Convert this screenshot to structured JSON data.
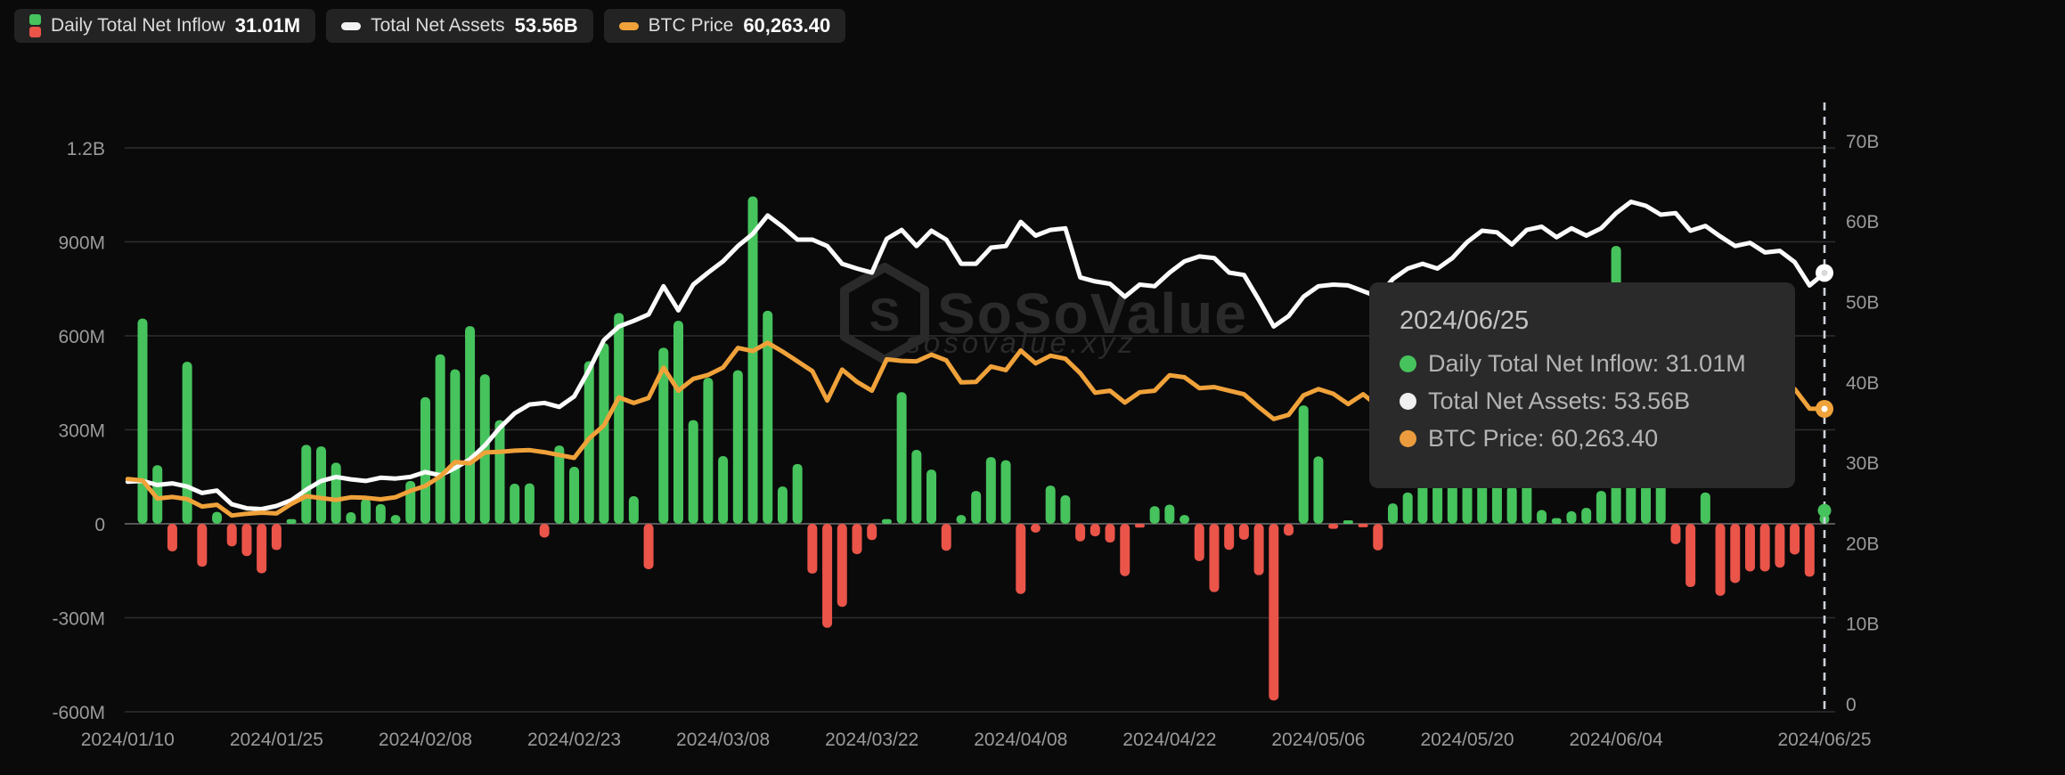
{
  "legend": [
    {
      "label": "Daily Total Net Inflow",
      "value": "31.01M",
      "icon": "green-red-bars-icon"
    },
    {
      "label": "Total Net Assets",
      "value": "53.56B",
      "icon": "white-dash-icon"
    },
    {
      "label": "BTC Price",
      "value": "60,263.40",
      "icon": "orange-dash-icon"
    }
  ],
  "tooltip": {
    "date": "2024/06/25",
    "rows": [
      {
        "label": "Daily Total Net Inflow:",
        "value": "31.01M",
        "color": "#46c35c"
      },
      {
        "label": "Total Net Assets:",
        "value": "53.56B",
        "color": "#f0f0f0"
      },
      {
        "label": "BTC Price:",
        "value": "60,263.40",
        "color": "#ec9c3e"
      }
    ]
  },
  "watermark": {
    "title": "SoSoValue",
    "subtitle": "sosovalue.xyz"
  },
  "colors": {
    "green": "#46c35c",
    "red": "#ea5449",
    "orange": "#f0a23a",
    "white_line": "#fbfbfb",
    "grid": "#2e2e2e",
    "zero_line": "#565656",
    "axis_text": "#9a9a9a",
    "bg": "#0a0a0b",
    "tooltip_bg": "#2a2a2b",
    "legend_bg": "#232323",
    "watermark": "#2a2a2a",
    "cursor": "#ccd1d9"
  },
  "chart_data": {
    "type": "bar+line",
    "title": "",
    "legend_position": "top-left",
    "grid": true,
    "dates": [
      "2024/01/11",
      "2024/01/12",
      "2024/01/16",
      "2024/01/17",
      "2024/01/18",
      "2024/01/19",
      "2024/01/22",
      "2024/01/23",
      "2024/01/24",
      "2024/01/25",
      "2024/01/26",
      "2024/01/29",
      "2024/01/30",
      "2024/01/31",
      "2024/02/01",
      "2024/02/02",
      "2024/02/05",
      "2024/02/06",
      "2024/02/07",
      "2024/02/08",
      "2024/02/09",
      "2024/02/12",
      "2024/02/13",
      "2024/02/14",
      "2024/02/15",
      "2024/02/16",
      "2024/02/20",
      "2024/02/21",
      "2024/02/22",
      "2024/02/23",
      "2024/02/26",
      "2024/02/27",
      "2024/02/28",
      "2024/02/29",
      "2024/03/01",
      "2024/03/04",
      "2024/03/05",
      "2024/03/06",
      "2024/03/07",
      "2024/03/08",
      "2024/03/11",
      "2024/03/12",
      "2024/03/13",
      "2024/03/14",
      "2024/03/15",
      "2024/03/18",
      "2024/03/19",
      "2024/03/20",
      "2024/03/21",
      "2024/03/22",
      "2024/03/25",
      "2024/03/26",
      "2024/03/27",
      "2024/03/28",
      "2024/04/01",
      "2024/04/02",
      "2024/04/03",
      "2024/04/04",
      "2024/04/05",
      "2024/04/08",
      "2024/04/09",
      "2024/04/10",
      "2024/04/11",
      "2024/04/12",
      "2024/04/15",
      "2024/04/16",
      "2024/04/17",
      "2024/04/18",
      "2024/04/19",
      "2024/04/22",
      "2024/04/23",
      "2024/04/24",
      "2024/04/25",
      "2024/04/26",
      "2024/04/29",
      "2024/04/30",
      "2024/05/01",
      "2024/05/02",
      "2024/05/03",
      "2024/05/06",
      "2024/05/07",
      "2024/05/08",
      "2024/05/09",
      "2024/05/10",
      "2024/05/13",
      "2024/05/14",
      "2024/05/15",
      "2024/05/16",
      "2024/05/17",
      "2024/05/20",
      "2024/05/21",
      "2024/05/22",
      "2024/05/23",
      "2024/05/24",
      "2024/05/28",
      "2024/05/29",
      "2024/05/30",
      "2024/05/31",
      "2024/06/03",
      "2024/06/04",
      "2024/06/05",
      "2024/06/06",
      "2024/06/07",
      "2024/06/10",
      "2024/06/11",
      "2024/06/12",
      "2024/06/13",
      "2024/06/14",
      "2024/06/17",
      "2024/06/18",
      "2024/06/20",
      "2024/06/21",
      "2024/06/24",
      "2024/06/25"
    ],
    "series": [
      {
        "name": "Daily Total Net Inflow",
        "type": "bar",
        "axis": "left",
        "unit": "M USD",
        "values": [
          655,
          187,
          -88,
          517,
          -137,
          38,
          -72,
          -103,
          -158,
          -84,
          15,
          252,
          247,
          195,
          37,
          80,
          63,
          28,
          137,
          404,
          541,
          493,
          631,
          477,
          331,
          128,
          129,
          -44,
          250,
          182,
          519,
          577,
          673,
          88,
          -145,
          562,
          648,
          331,
          466,
          216,
          490,
          1045,
          680,
          119,
          191,
          -159,
          -332,
          -265,
          -97,
          -52,
          15,
          420,
          236,
          173,
          -86,
          28,
          105,
          213,
          203,
          -224,
          -28,
          122,
          91,
          -56,
          -40,
          -60,
          -167,
          -12,
          56,
          61,
          28,
          -119,
          -218,
          -83,
          -51,
          -164,
          -564,
          -38,
          378,
          215,
          -16,
          11,
          -11,
          -85,
          65,
          100,
          304,
          257,
          235,
          238,
          306,
          154,
          120,
          252,
          44,
          18,
          40,
          51,
          105,
          887,
          488,
          218,
          132,
          -65,
          -202,
          100,
          -230,
          -189,
          -152,
          -152,
          -140,
          -98,
          -169,
          31.01
        ]
      },
      {
        "name": "Total Net Assets",
        "type": "line",
        "axis": "right",
        "unit": "B USD",
        "lead_point": {
          "date": "2024/01/10",
          "value": 27.6
        },
        "values": [
          27.7,
          27.2,
          27.4,
          27.0,
          26.2,
          26.5,
          24.8,
          24.3,
          24.2,
          24.6,
          25.3,
          26.6,
          27.7,
          28.2,
          27.9,
          27.7,
          28.1,
          28.0,
          28.2,
          28.8,
          28.4,
          29.3,
          30.4,
          32.1,
          34.3,
          36.1,
          37.2,
          37.4,
          36.9,
          38.2,
          41.5,
          45.2,
          46.9,
          47.6,
          48.4,
          51.9,
          48.9,
          52.1,
          53.6,
          55.0,
          56.9,
          58.4,
          60.7,
          59.3,
          57.7,
          57.7,
          56.9,
          54.7,
          54.1,
          53.6,
          57.8,
          58.9,
          56.9,
          58.8,
          57.7,
          54.7,
          54.7,
          56.7,
          56.9,
          59.9,
          58.2,
          58.9,
          59.1,
          53.0,
          52.5,
          52.2,
          50.6,
          52.1,
          51.9,
          53.6,
          55.0,
          55.6,
          55.4,
          53.6,
          53.3,
          50.2,
          46.9,
          48.2,
          50.6,
          51.9,
          52.1,
          52.0,
          51.3,
          50.6,
          52.8,
          54.1,
          54.7,
          54.1,
          55.4,
          57.4,
          58.8,
          58.6,
          57.1,
          58.9,
          59.3,
          58.0,
          59.1,
          58.2,
          59.1,
          61.0,
          62.4,
          61.9,
          60.8,
          61.0,
          58.8,
          59.4,
          58.1,
          56.9,
          57.3,
          56.1,
          56.3,
          54.9,
          52.0,
          53.56
        ]
      },
      {
        "name": "BTC Price",
        "type": "line",
        "axis": "price-hidden",
        "unit": "USD",
        "lead_point": {
          "date": "2024/01/10",
          "value": 46650
        },
        "values": [
          46350,
          42850,
          43150,
          42750,
          41300,
          41650,
          39550,
          39900,
          40100,
          39950,
          41800,
          43300,
          42950,
          42580,
          43080,
          43000,
          42700,
          43100,
          44350,
          45300,
          47150,
          49950,
          49700,
          51800,
          51900,
          52150,
          52250,
          51850,
          51300,
          50750,
          54500,
          57050,
          62500,
          61400,
          62400,
          68300,
          63800,
          66100,
          66850,
          68300,
          72100,
          71500,
          73100,
          71400,
          69500,
          67600,
          61900,
          67900,
          65500,
          63800,
          69900,
          69600,
          69500,
          70800,
          69700,
          65400,
          65500,
          68500,
          67800,
          71600,
          69100,
          70600,
          70000,
          67200,
          63400,
          63800,
          61500,
          63500,
          63800,
          66800,
          66400,
          64300,
          64500,
          63800,
          63100,
          60600,
          58300,
          59100,
          62900,
          64100,
          63200,
          61200,
          63100,
          60800,
          62900,
          61600,
          66300,
          65200,
          67000,
          71400,
          70100,
          69200,
          67900,
          68500,
          68400,
          67600,
          68300,
          67500,
          68800,
          70500,
          71100,
          70800,
          69300,
          69500,
          67300,
          68300,
          66800,
          66000,
          66500,
          65200,
          64900,
          64100,
          60300,
          60263.4
        ]
      }
    ],
    "left_axis": {
      "labels": [
        "1.2B",
        "900M",
        "600M",
        "300M",
        "0",
        "-300M",
        "-600M"
      ],
      "values_M": [
        1200,
        900,
        600,
        300,
        0,
        -300,
        -600
      ],
      "ylim_M": [
        -600,
        1200
      ]
    },
    "right_axis": {
      "labels": [
        "70B",
        "60B",
        "50B",
        "40B",
        "30B",
        "20B",
        "10B",
        "0"
      ],
      "values_B": [
        70,
        60,
        50,
        40,
        30,
        20,
        10,
        0
      ],
      "ylim_B": [
        0,
        70
      ]
    },
    "price_axis_hidden": {
      "calibration": "39500 USD at left-axis y of -25M, 73100 USD at +577M"
    },
    "x_ticks": [
      {
        "label": "2024/01/10",
        "bar_index": -1
      },
      {
        "label": "2024/01/25",
        "bar_index": 9
      },
      {
        "label": "2024/02/08",
        "bar_index": 19
      },
      {
        "label": "2024/02/23",
        "bar_index": 29
      },
      {
        "label": "2024/03/08",
        "bar_index": 39
      },
      {
        "label": "2024/03/22",
        "bar_index": 49
      },
      {
        "label": "2024/04/08",
        "bar_index": 59
      },
      {
        "label": "2024/04/22",
        "bar_index": 69
      },
      {
        "label": "2024/05/06",
        "bar_index": 79
      },
      {
        "label": "2024/05/20",
        "bar_index": 89
      },
      {
        "label": "2024/06/04",
        "bar_index": 99
      },
      {
        "label": "2024/06/25",
        "bar_index": 113
      }
    ],
    "cursor": {
      "date": "2024/06/25",
      "bar_index": 113,
      "markers": [
        {
          "series": "Total Net Assets",
          "value_B": 53.56
        },
        {
          "series": "BTC Price",
          "value_USD": 60263.4
        },
        {
          "series": "Daily Total Net Inflow",
          "value_M": 31.01
        }
      ]
    }
  }
}
